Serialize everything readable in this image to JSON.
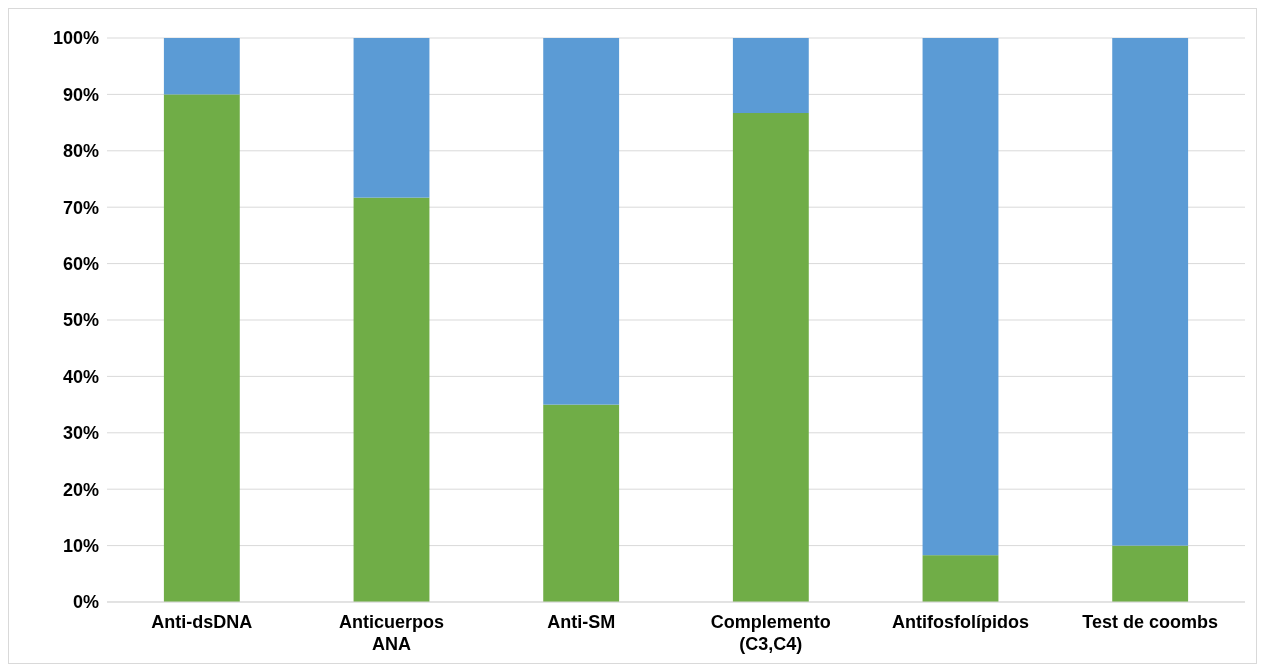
{
  "chart_data": {
    "type": "bar",
    "stacked": true,
    "categories": [
      "Anti-dsDNA",
      "Anticuerpos ANA",
      "Anti-SM",
      "Complemento (C3,C4)",
      "Antifosfolípidos",
      "Test de coombs"
    ],
    "series": [
      {
        "color": "#70ad47",
        "values": [
          90,
          71.7,
          35,
          86.7,
          8.3,
          10
        ]
      },
      {
        "color": "#5b9bd5",
        "values": [
          10,
          28.3,
          65,
          13.3,
          91.7,
          90
        ]
      }
    ],
    "ylim": [
      0,
      100
    ],
    "yticks": [
      {
        "value": 0,
        "label": "0%"
      },
      {
        "value": 10,
        "label": "10%"
      },
      {
        "value": 20,
        "label": "20%"
      },
      {
        "value": 30,
        "label": "30%"
      },
      {
        "value": 40,
        "label": "40%"
      },
      {
        "value": 50,
        "label": "50%"
      },
      {
        "value": 60,
        "label": "60%"
      },
      {
        "value": 70,
        "label": "70%"
      },
      {
        "value": 80,
        "label": "80%"
      },
      {
        "value": 90,
        "label": "90%"
      },
      {
        "value": 100,
        "label": "100%"
      }
    ],
    "grid": "y"
  }
}
